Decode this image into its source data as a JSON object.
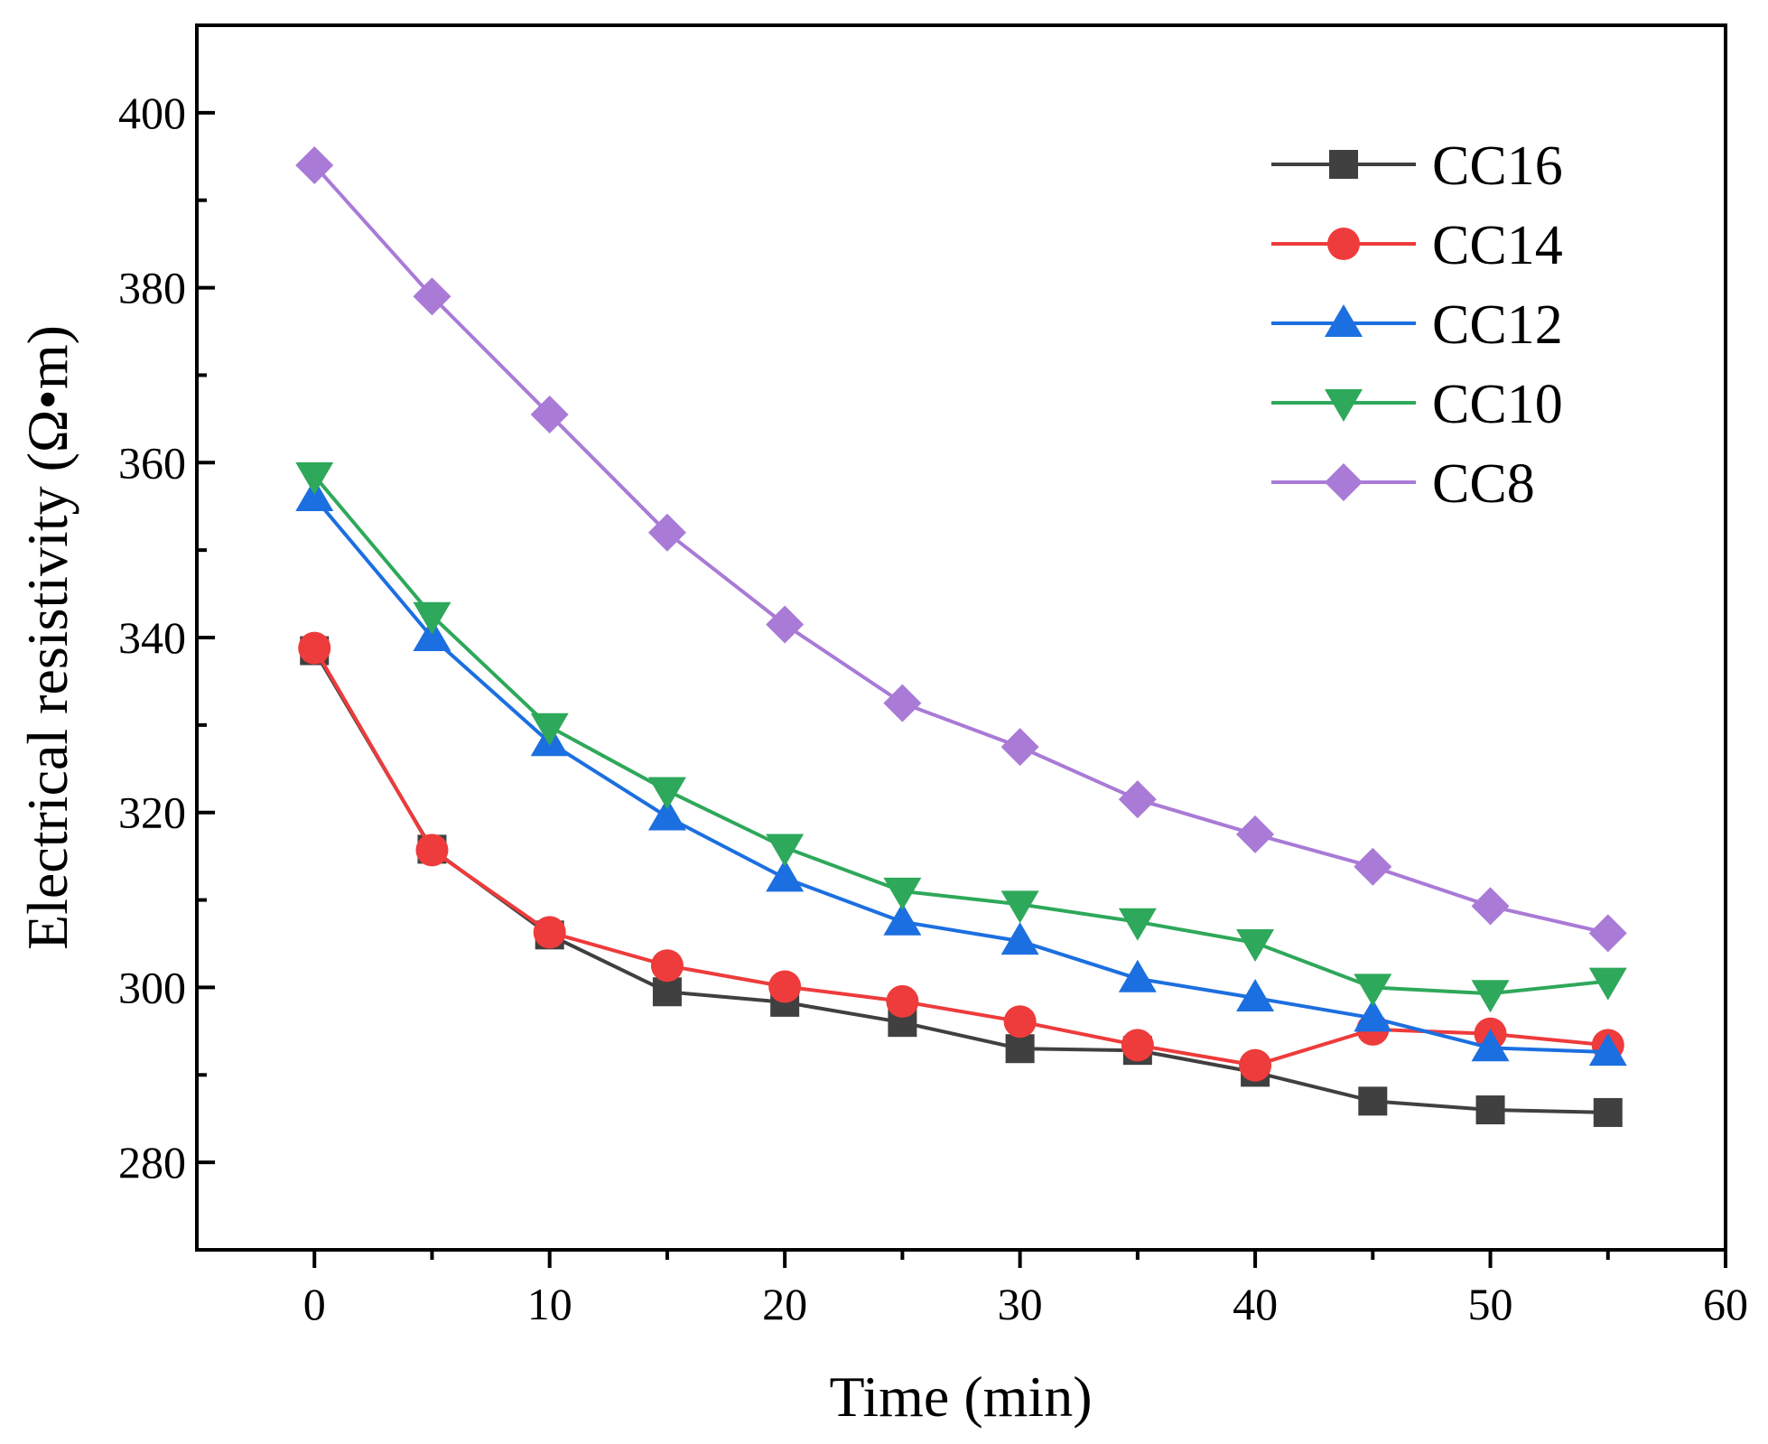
{
  "chart_data": {
    "type": "line",
    "title": "",
    "xlabel": "Time (min)",
    "ylabel": "Electrical resistivity (Ω•m)",
    "xlim": [
      -5,
      60
    ],
    "ylim": [
      270,
      410
    ],
    "xticks": [
      0,
      10,
      20,
      30,
      40,
      50,
      60
    ],
    "xticks_minor": [
      5,
      15,
      25,
      35,
      45,
      55
    ],
    "yticks": [
      280,
      300,
      320,
      340,
      360,
      380,
      400
    ],
    "yticks_minor": [
      290,
      310,
      330,
      350,
      370,
      390
    ],
    "grid": false,
    "legend_position": "top-right",
    "x": [
      0,
      5,
      10,
      15,
      20,
      25,
      30,
      35,
      40,
      45,
      50,
      55
    ],
    "series": [
      {
        "name": "CC16",
        "marker": "square",
        "color": "#404040",
        "values": [
          338.5,
          315.8,
          306.0,
          299.5,
          298.3,
          296.0,
          293.0,
          292.8,
          290.3,
          287.0,
          286.0,
          285.7
        ]
      },
      {
        "name": "CC14",
        "marker": "circle",
        "color": "#ee3b3b",
        "values": [
          338.8,
          315.7,
          306.3,
          302.5,
          300.1,
          298.4,
          296.1,
          293.4,
          291.1,
          295.2,
          294.7,
          293.4
        ]
      },
      {
        "name": "CC12",
        "marker": "triangle-up",
        "color": "#1c6fe0",
        "values": [
          356.0,
          340.0,
          328.0,
          319.5,
          312.5,
          307.5,
          305.3,
          301.0,
          298.8,
          296.5,
          293.1,
          292.6
        ]
      },
      {
        "name": "CC10",
        "marker": "triangle-down",
        "color": "#2ea85a",
        "values": [
          358.5,
          342.5,
          329.8,
          322.5,
          316.0,
          311.0,
          309.5,
          307.5,
          305.1,
          300.0,
          299.3,
          300.7
        ]
      },
      {
        "name": "CC8",
        "marker": "diamond",
        "color": "#a97ad6",
        "values": [
          394.0,
          379.0,
          365.5,
          352.0,
          341.5,
          332.5,
          327.5,
          321.5,
          317.5,
          313.8,
          309.3,
          306.2
        ]
      }
    ]
  }
}
